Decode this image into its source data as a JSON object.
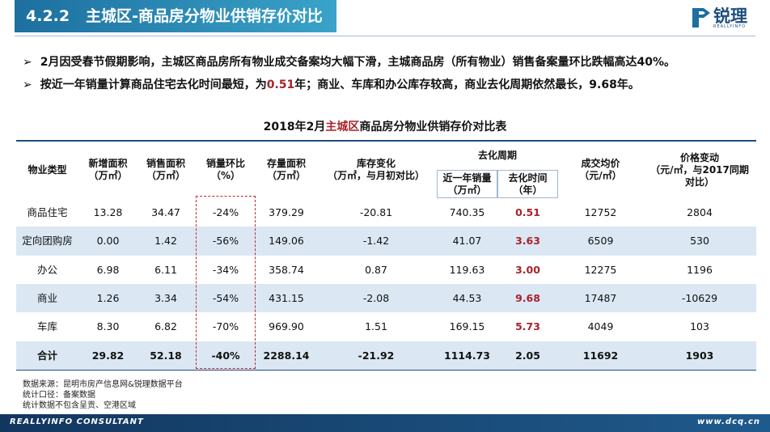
{
  "header": {
    "number": "4.2.2",
    "title": "主城区-商品房分物业供销存价对比",
    "logo": "锐理",
    "logo_sub": "REALLYINFO"
  },
  "bullets": [
    [
      "2月因受春节假期影响，主城区商品房所有物业成交备案均大幅下滑，主城商品房（所有物业）销售备案量环比跌幅高达40%。"
    ],
    [
      "按近一年销量计算商品住宅去化时间最短，为",
      "0.51",
      "年；商业、车库和办公库存较高，商业去化周期依然最长，9.68年。"
    ]
  ],
  "table": {
    "title": [
      "2018年2月",
      "主城区",
      "商品房分物业供销存价对比表"
    ],
    "group": "去化周期",
    "columns": [
      "物业类型",
      "新增面积\n（万㎡）",
      "销售面积\n（万㎡）",
      "销量环比\n（%）",
      "存量面积\n（万㎡）",
      "库存变化\n（万㎡，与月初对比）",
      "近一年销量\n（万㎡）",
      "去化时间\n（年）",
      "成交均价\n（元/㎡）",
      "价格变动\n（元/㎡，与2017同期\n对比）"
    ],
    "rows": [
      [
        "商品住宅",
        "13.28",
        "34.47",
        "-24%",
        "379.29",
        "-20.81",
        "740.35",
        "0.51",
        "12752",
        "2804"
      ],
      [
        "定向团购房",
        "0.00",
        "1.42",
        "-56%",
        "149.06",
        "-1.42",
        "41.07",
        "3.63",
        "6509",
        "530"
      ],
      [
        "办公",
        "6.98",
        "6.11",
        "-34%",
        "358.74",
        "0.87",
        "119.63",
        "3.00",
        "12275",
        "1196"
      ],
      [
        "商业",
        "1.26",
        "3.34",
        "-54%",
        "431.15",
        "-2.08",
        "44.53",
        "9.68",
        "17487",
        "-10629"
      ],
      [
        "车库",
        "8.30",
        "6.82",
        "-70%",
        "969.90",
        "1.51",
        "169.15",
        "5.73",
        "4049",
        "103"
      ],
      [
        "合计",
        "29.82",
        "52.18",
        "-40%",
        "2288.14",
        "-21.92",
        "1114.73",
        "2.05",
        "11692",
        "1903"
      ]
    ]
  },
  "notes": [
    "数据来源：昆明市房产信息网&锐理数据平台",
    "统计口径：备案数据",
    "统计数据不包含呈贡、空港区域"
  ],
  "footer": {
    "left": "REALLYINFO CONSULTANT",
    "right": "www.dcq.cn"
  }
}
